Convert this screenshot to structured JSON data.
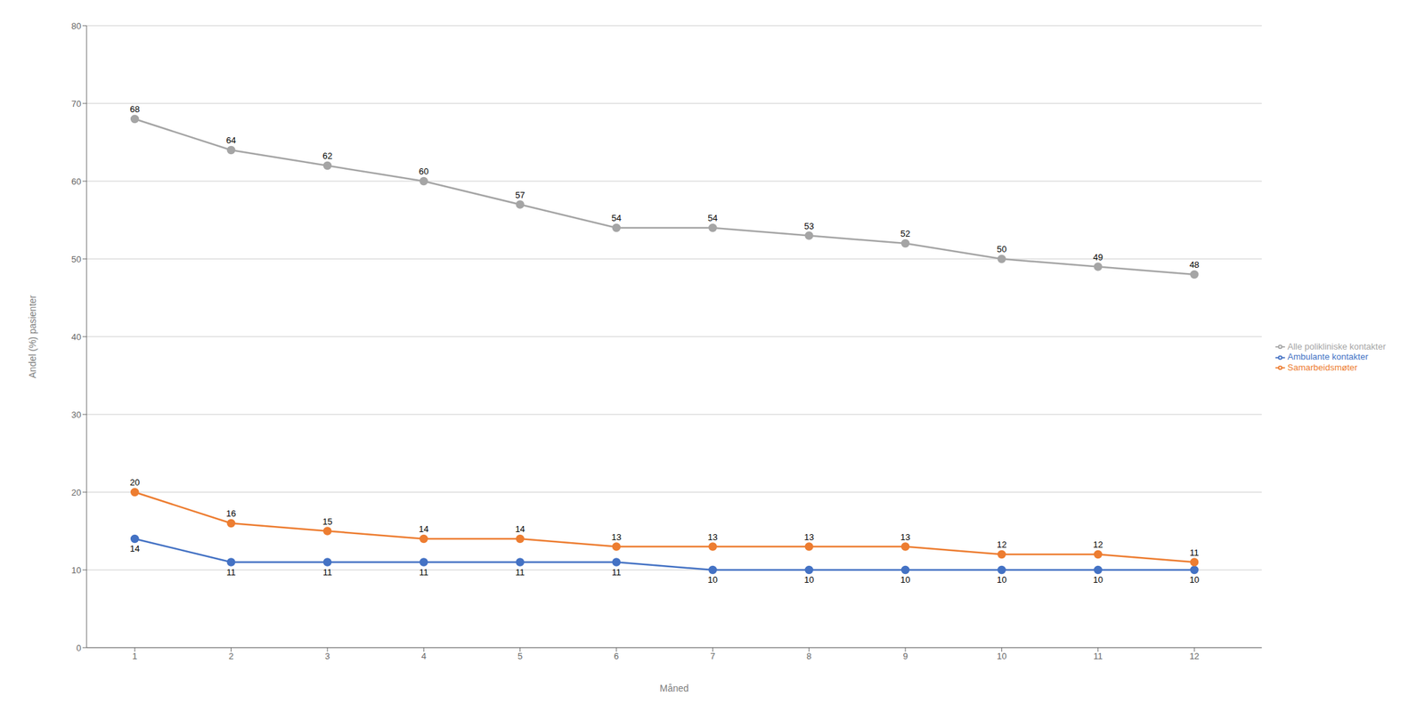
{
  "chart_data": {
    "type": "line",
    "xlabel": "Måned",
    "ylabel": "Andel (%) pasienter",
    "x": [
      1,
      2,
      3,
      4,
      5,
      6,
      7,
      8,
      9,
      10,
      11,
      12
    ],
    "series": [
      {
        "name": "Ambulante kontakter",
        "color": "#4472C4",
        "values": [
          14,
          11,
          11,
          11,
          11,
          11,
          10,
          10,
          10,
          10,
          10,
          10
        ]
      },
      {
        "name": "Samarbeidsmøter",
        "color": "#ED7D31",
        "values": [
          20,
          16,
          15,
          14,
          14,
          13,
          13,
          13,
          13,
          12,
          12,
          11
        ]
      },
      {
        "name": "Alle polikliniske kontakter",
        "color": "#A5A5A5",
        "values": [
          68,
          64,
          62,
          60,
          57,
          54,
          54,
          53,
          52,
          50,
          49,
          48
        ]
      }
    ],
    "xlim": [
      0.5,
      12.7
    ],
    "xticks": [
      1,
      2,
      3,
      4,
      5,
      6,
      7,
      8,
      9,
      10,
      11,
      12
    ],
    "ylim": [
      0,
      80
    ],
    "yticks": [
      0,
      10,
      20,
      30,
      40,
      50,
      60,
      70,
      80
    ],
    "grid": "y",
    "legend": "right",
    "data_labels": true,
    "marker": "circle"
  }
}
